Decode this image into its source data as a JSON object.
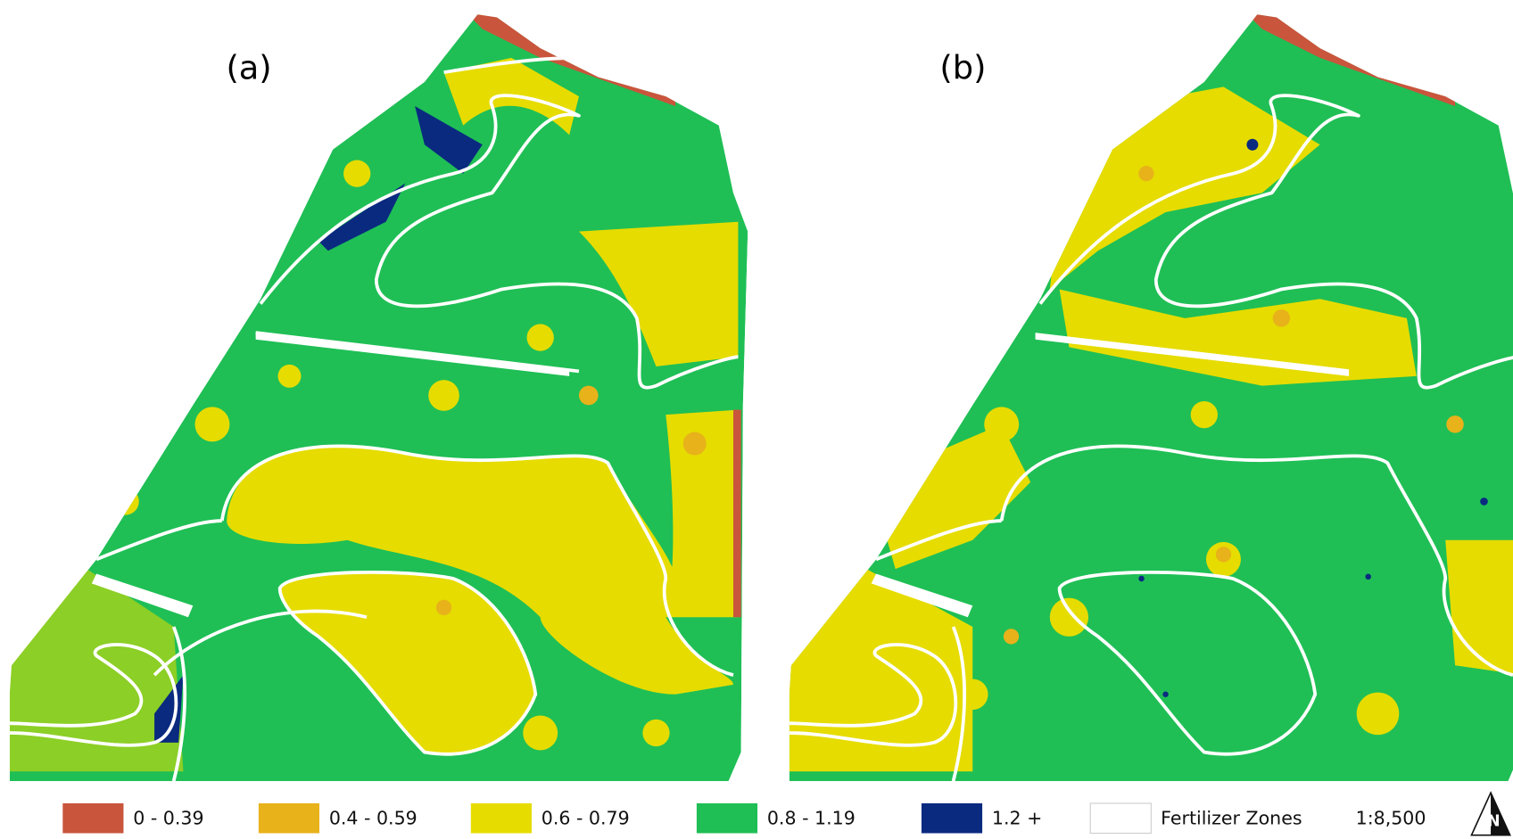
{
  "panels": [
    {
      "label": "(a)"
    },
    {
      "label": "(b)"
    }
  ],
  "legend": [
    {
      "label": "0 - 0.39",
      "color": "#c9553c"
    },
    {
      "label": "0.4 - 0.59",
      "color": "#e8b21a"
    },
    {
      "label": "0.6 - 0.79",
      "color": "#e6dc00"
    },
    {
      "label": "0.8 - 1.19",
      "color": "#1fbf55"
    },
    {
      "label": "1.2 +",
      "color": "#0a2a80"
    },
    {
      "label": "Fertilizer Zones",
      "color": "#ffffff"
    }
  ],
  "scale": "1:8,500",
  "north_arrow": "N"
}
